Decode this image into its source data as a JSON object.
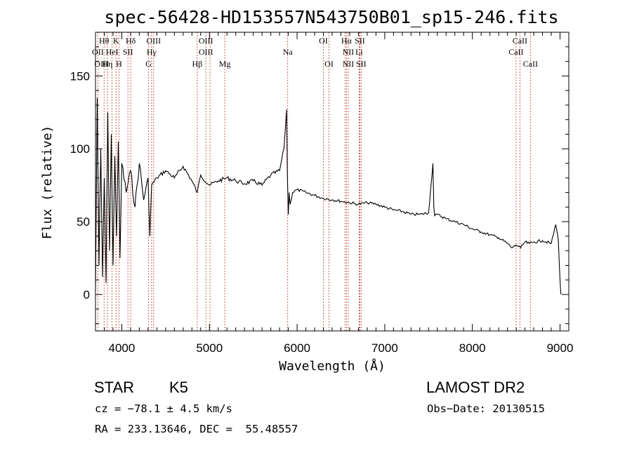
{
  "chart_data": {
    "type": "line",
    "title": "spec-56428-HD153557N543750B01_sp15-246.fits",
    "xlabel": "Wavelength (Å)",
    "ylabel": "Flux (relative)",
    "xlim": [
      3700,
      9100
    ],
    "ylim": [
      -25,
      180
    ],
    "xticks": [
      4000,
      5000,
      6000,
      7000,
      8000,
      9000
    ],
    "yticks": [
      0,
      50,
      100,
      150
    ],
    "series": [
      {
        "x": [
          3700,
          3720,
          3740,
          3760,
          3780,
          3800,
          3820,
          3840,
          3860,
          3880,
          3900,
          3920,
          3940,
          3960,
          3980,
          4000,
          4050,
          4100,
          4150,
          4200,
          4250,
          4300,
          4320,
          4340,
          4400,
          4500,
          4600,
          4700,
          4800,
          4861,
          4900,
          5000,
          5100,
          5200,
          5300,
          5400,
          5500,
          5600,
          5700,
          5800,
          5850,
          5880,
          5890,
          5900,
          5910,
          5920,
          5950,
          6000,
          6100,
          6200,
          6300,
          6400,
          6500,
          6600,
          6700,
          6800,
          6900,
          7000,
          7100,
          7200,
          7300,
          7400,
          7500,
          7550,
          7560,
          7570,
          7600,
          7700,
          7800,
          7900,
          8000,
          8100,
          8200,
          8300,
          8400,
          8450,
          8500,
          8550,
          8600,
          8650,
          8700,
          8800,
          8900,
          8950,
          8980,
          9000,
          9010
        ],
        "values": [
          2,
          135,
          20,
          100,
          12,
          80,
          8,
          125,
          30,
          110,
          20,
          95,
          40,
          105,
          25,
          90,
          70,
          85,
          60,
          90,
          65,
          80,
          40,
          75,
          80,
          85,
          80,
          88,
          78,
          70,
          82,
          75,
          78,
          80,
          78,
          76,
          78,
          75,
          82,
          85,
          100,
          127,
          80,
          55,
          70,
          62,
          70,
          72,
          70,
          68,
          66,
          65,
          64,
          63,
          62,
          63,
          62,
          60,
          58,
          57,
          55,
          55,
          56,
          90,
          60,
          54,
          55,
          52,
          50,
          48,
          45,
          43,
          41,
          39,
          35,
          32,
          34,
          32,
          36,
          35,
          36,
          37,
          35,
          48,
          38,
          10,
          0
        ]
      }
    ],
    "lines_top": [
      {
        "text": "Hθ",
        "x": 3798,
        "row": 0
      },
      {
        "text": "K",
        "x": 3934,
        "row": 0
      },
      {
        "text": "Hδ",
        "x": 4102,
        "row": 0
      },
      {
        "text": "OIII",
        "x": 4363,
        "row": 0
      },
      {
        "text": "OIII",
        "x": 4959,
        "row": 0
      },
      {
        "text": "OI",
        "x": 6300,
        "row": 0
      },
      {
        "text": "Hα",
        "x": 6563,
        "row": 0
      },
      {
        "text": "SII",
        "x": 6716,
        "row": 0
      },
      {
        "text": "CaII",
        "x": 8542,
        "row": 0
      },
      {
        "text": "OII",
        "x": 3727,
        "row": 1
      },
      {
        "text": "HeI",
        "x": 3889,
        "row": 1
      },
      {
        "text": "SII",
        "x": 4070,
        "row": 1
      },
      {
        "text": "Hγ",
        "x": 4340,
        "row": 1
      },
      {
        "text": "OIII",
        "x": 4959,
        "row": 1
      },
      {
        "text": "Na",
        "x": 5893,
        "row": 1
      },
      {
        "text": "NII",
        "x": 6584,
        "row": 1
      },
      {
        "text": "Li",
        "x": 6708,
        "row": 1
      },
      {
        "text": "CaII",
        "x": 8498,
        "row": 1
      },
      {
        "text": "OIII",
        "x": 3770,
        "row": 2
      },
      {
        "text": "Hη",
        "x": 3835,
        "row": 2
      },
      {
        "text": "H",
        "x": 3968,
        "row": 2
      },
      {
        "text": "G",
        "x": 4305,
        "row": 2
      },
      {
        "text": "Hβ",
        "x": 4861,
        "row": 2
      },
      {
        "text": "Mg",
        "x": 5175,
        "row": 2
      },
      {
        "text": "OI",
        "x": 6364,
        "row": 2
      },
      {
        "text": "NII",
        "x": 6584,
        "row": 2
      },
      {
        "text": "SII",
        "x": 6731,
        "row": 2
      },
      {
        "text": "CaII",
        "x": 8662,
        "row": 2
      }
    ],
    "line_marks": [
      3727,
      3798,
      3835,
      3889,
      3934,
      3968,
      4070,
      4102,
      4305,
      4340,
      4363,
      4861,
      4959,
      5007,
      5175,
      5893,
      6300,
      6364,
      6548,
      6563,
      6584,
      6708,
      6716,
      6731,
      8498,
      8542,
      8662
    ]
  },
  "info": {
    "object_class": "STAR",
    "subclass": "K5",
    "survey": "LAMOST DR2",
    "cz": "cz = −78.1 ± 4.5 km/s",
    "obs_date": "Obs−Date: 20130515",
    "coords": "RA = 233.13646, DEC =  55.48557"
  },
  "colors": {
    "spectrum": "#000000",
    "line_marker": "#c0392b"
  }
}
